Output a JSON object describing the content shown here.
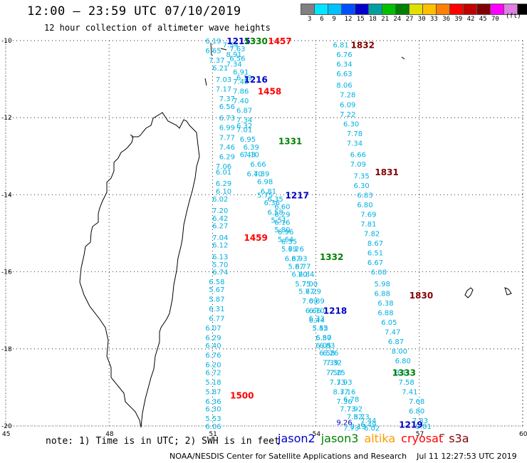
{
  "header": {
    "title": "12:00 – 23:59 UTC 07/10/2019",
    "subtitle": "12 hour collection of altimeter wave heights"
  },
  "colorbar": {
    "unit": "(ft)",
    "ticks": [
      "3",
      "6",
      "9",
      "12",
      "15",
      "18",
      "21",
      "24",
      "27",
      "30",
      "33",
      "36",
      "39",
      "42",
      "45",
      "70"
    ],
    "colors": [
      "#808080",
      "#00e5ff",
      "#00c0ff",
      "#0050ff",
      "#0000c8",
      "#00a0a0",
      "#00c000",
      "#008000",
      "#e0e000",
      "#ffc000",
      "#ff8000",
      "#ff0000",
      "#c00000",
      "#800000",
      "#ff00ff",
      "#e080e0",
      "#000000"
    ]
  },
  "axes": {
    "lat_labels": [
      "-10",
      "-12",
      "-14",
      "-16",
      "-18",
      "-20"
    ],
    "lon_labels": [
      "45",
      "48",
      "51",
      "54",
      "57",
      "60"
    ]
  },
  "chart_data": {
    "type": "scatter",
    "xlabel": "",
    "ylabel": "",
    "xlim": [
      45,
      60
    ],
    "ylim": [
      -20,
      -10
    ],
    "passes": [
      {
        "label": "1215",
        "satellite": "jason2",
        "color": "#0000c8",
        "lon": 51.7,
        "lat": -10.0
      },
      {
        "label": "1216",
        "satellite": "jason2",
        "color": "#0000c8",
        "lon": 52.2,
        "lat": -11.0
      },
      {
        "label": "1217",
        "satellite": "jason2",
        "color": "#0000c8",
        "lon": 53.4,
        "lat": -14.0
      },
      {
        "label": "1218",
        "satellite": "jason2",
        "color": "#0000c8",
        "lon": 54.5,
        "lat": -17.0
      },
      {
        "label": "1219",
        "satellite": "jason2",
        "color": "#0000c8",
        "lon": 56.7,
        "lat": -19.95
      },
      {
        "label": "1330",
        "satellite": "jason3",
        "color": "#008000",
        "lon": 52.2,
        "lat": -10.0
      },
      {
        "label": "1331",
        "satellite": "jason3",
        "color": "#008000",
        "lon": 53.2,
        "lat": -12.6
      },
      {
        "label": "1332",
        "satellite": "jason3",
        "color": "#008000",
        "lon": 54.4,
        "lat": -15.6
      },
      {
        "label": "1333",
        "satellite": "jason3",
        "color": "#008000",
        "lon": 56.5,
        "lat": -18.6
      },
      {
        "label": "1457",
        "satellite": "cryosat",
        "color": "#ff0000",
        "lon": 52.9,
        "lat": -10.0
      },
      {
        "label": "1458",
        "satellite": "cryosat",
        "color": "#ff0000",
        "lon": 52.6,
        "lat": -11.3
      },
      {
        "label": "1459",
        "satellite": "cryosat",
        "color": "#ff0000",
        "lon": 52.2,
        "lat": -15.1
      },
      {
        "label": "1500",
        "satellite": "cryosat",
        "color": "#ff0000",
        "lon": 51.8,
        "lat": -19.2
      },
      {
        "label": "1832",
        "satellite": "s3a",
        "color": "#800000",
        "lon": 55.3,
        "lat": -10.1
      },
      {
        "label": "1831",
        "satellite": "s3a",
        "color": "#800000",
        "lon": 56.0,
        "lat": -13.4
      },
      {
        "label": "1830",
        "satellite": "s3a",
        "color": "#800000",
        "lon": 57.0,
        "lat": -16.6
      }
    ],
    "tracks": [
      {
        "satellite": "cryosat",
        "color": "#00b0e0",
        "points": [
          [
            51.0,
            -10.0,
            "6.19"
          ],
          [
            51.0,
            -10.25,
            "6.65"
          ],
          [
            51.1,
            -10.5,
            "7.37"
          ],
          [
            51.2,
            -10.7,
            "6.21"
          ],
          [
            51.3,
            -11.0,
            "7.03"
          ],
          [
            51.3,
            -11.25,
            "7.17"
          ],
          [
            51.4,
            -11.5,
            "7.37"
          ],
          [
            51.4,
            -11.7,
            "6.56"
          ],
          [
            51.4,
            -12.0,
            "6.73"
          ],
          [
            51.4,
            -12.25,
            "6.99"
          ],
          [
            51.4,
            -12.5,
            "7.77"
          ],
          [
            51.4,
            -12.75,
            "7.46"
          ],
          [
            51.4,
            -13.0,
            "6.29"
          ],
          [
            51.3,
            -13.25,
            "7.06"
          ],
          [
            51.3,
            -13.4,
            "6.01"
          ],
          [
            51.3,
            -13.7,
            "6.29"
          ],
          [
            51.3,
            -13.9,
            "6.10"
          ],
          [
            51.2,
            -14.1,
            "6.02"
          ],
          [
            51.2,
            -14.4,
            "7.20"
          ],
          [
            51.2,
            -14.6,
            "6.42"
          ],
          [
            51.2,
            -14.8,
            "6.27"
          ],
          [
            51.2,
            -15.1,
            "7.04"
          ],
          [
            51.2,
            -15.3,
            "6.12"
          ],
          [
            51.2,
            -15.6,
            "6.13"
          ],
          [
            51.2,
            -15.8,
            "5.70"
          ],
          [
            51.2,
            -16.0,
            "6.74"
          ],
          [
            51.1,
            -16.25,
            "6.58"
          ],
          [
            51.1,
            -16.45,
            "5.67"
          ],
          [
            51.1,
            -16.7,
            "5.87"
          ],
          [
            51.1,
            -16.95,
            "6.31"
          ],
          [
            51.1,
            -17.2,
            "6.77"
          ],
          [
            51.0,
            -17.45,
            "6.07"
          ],
          [
            51.0,
            -17.7,
            "6.29"
          ],
          [
            51.0,
            -17.9,
            "6.40"
          ],
          [
            51.0,
            -18.15,
            "6.76"
          ],
          [
            51.0,
            -18.4,
            "6.20"
          ],
          [
            51.0,
            -18.6,
            "6.72"
          ],
          [
            51.0,
            -18.85,
            "5.18"
          ],
          [
            51.0,
            -19.1,
            "5.87"
          ],
          [
            51.0,
            -19.35,
            "6.36"
          ],
          [
            51.0,
            -19.55,
            "6.30"
          ],
          [
            51.0,
            -19.8,
            "5.53"
          ],
          [
            51.0,
            -20.0,
            "6.06"
          ]
        ]
      },
      {
        "satellite": "jason2",
        "color": "#00b0e0",
        "points": [
          [
            51.5,
            -10.1,
            "7.54"
          ],
          [
            51.6,
            -10.35,
            "8.91"
          ],
          [
            51.6,
            -10.6,
            "7.34"
          ],
          [
            51.8,
            -10.8,
            "6.91"
          ],
          [
            51.8,
            -11.05,
            "7.48"
          ],
          [
            51.8,
            -11.3,
            "7.86"
          ],
          [
            51.8,
            -11.55,
            "7.40"
          ],
          [
            51.9,
            -11.8,
            "6.87"
          ],
          [
            51.9,
            -12.05,
            "7.34"
          ],
          [
            51.9,
            -12.3,
            "7.01"
          ],
          [
            52.0,
            -12.55,
            "6.95"
          ],
          [
            52.1,
            -12.75,
            "6.39"
          ],
          [
            52.1,
            -12.95,
            "7.10"
          ],
          [
            52.3,
            -13.2,
            "6.66"
          ],
          [
            52.4,
            -13.45,
            "7.39"
          ],
          [
            52.5,
            -13.65,
            "6.98"
          ],
          [
            52.6,
            -13.9,
            "6.81"
          ],
          [
            52.8,
            -14.1,
            "6.35"
          ],
          [
            53.0,
            -14.3,
            "6.60"
          ],
          [
            53.0,
            -14.5,
            "6.29"
          ],
          [
            53.0,
            -14.7,
            "6.16"
          ],
          [
            53.1,
            -14.95,
            "6.96"
          ],
          [
            53.2,
            -15.2,
            "6.35"
          ],
          [
            53.4,
            -15.4,
            "6.26"
          ],
          [
            53.5,
            -15.65,
            "6.93"
          ],
          [
            53.6,
            -15.85,
            "6.77"
          ],
          [
            53.7,
            -16.05,
            "6.84"
          ],
          [
            53.8,
            -16.3,
            "7.00"
          ],
          [
            53.9,
            -16.5,
            "6.29"
          ],
          [
            54.0,
            -16.75,
            "6.89"
          ],
          [
            54.0,
            -17.0,
            "6.10"
          ],
          [
            54.0,
            -17.2,
            "6.33"
          ],
          [
            54.1,
            -17.45,
            "5.42"
          ],
          [
            54.2,
            -17.7,
            "6.80"
          ],
          [
            54.3,
            -17.9,
            "6.83"
          ],
          [
            54.4,
            -18.1,
            "6.26"
          ],
          [
            54.5,
            -18.35,
            "7.32"
          ],
          [
            54.6,
            -18.6,
            "7.25"
          ],
          [
            54.8,
            -18.85,
            "7.93"
          ],
          [
            54.9,
            -19.1,
            "7.16"
          ],
          [
            55.0,
            -19.3,
            "6.78"
          ],
          [
            55.1,
            -19.55,
            "7.92"
          ],
          [
            55.3,
            -19.75,
            "8.73"
          ],
          [
            55.5,
            -19.95,
            "6.49"
          ]
        ]
      },
      {
        "satellite": "jason3",
        "color": "#00b0e0",
        "points": [
          [
            51.7,
            -10.2,
            "7.63"
          ],
          [
            51.7,
            -10.45,
            "6.56"
          ],
          [
            51.9,
            -10.95,
            "6.19"
          ],
          [
            51.9,
            -12.2,
            "6.32"
          ],
          [
            52.0,
            -12.95,
            "6.43"
          ],
          [
            52.2,
            -13.45,
            "6.40"
          ],
          [
            52.5,
            -14.0,
            "5.75"
          ],
          [
            52.7,
            -14.2,
            "6.36"
          ],
          [
            52.8,
            -14.45,
            "6.58"
          ],
          [
            52.9,
            -14.65,
            "5.51"
          ],
          [
            53.0,
            -14.9,
            "5.80"
          ],
          [
            53.1,
            -15.15,
            "5.64"
          ],
          [
            53.2,
            -15.4,
            "5.79"
          ],
          [
            53.3,
            -15.65,
            "6.87"
          ],
          [
            53.4,
            -15.85,
            "5.87"
          ],
          [
            53.5,
            -16.05,
            "6.20"
          ],
          [
            53.6,
            -16.3,
            "5.75"
          ],
          [
            53.7,
            -16.5,
            "5.77"
          ],
          [
            53.8,
            -16.75,
            "7.09"
          ],
          [
            53.9,
            -17.0,
            "6.66"
          ],
          [
            54.0,
            -17.25,
            "6.44"
          ],
          [
            54.1,
            -17.45,
            "5.55"
          ],
          [
            54.2,
            -17.7,
            "6.57"
          ],
          [
            54.2,
            -17.9,
            "6.05"
          ],
          [
            54.3,
            -18.1,
            "6.58"
          ],
          [
            54.4,
            -18.35,
            "7.39"
          ],
          [
            54.5,
            -18.6,
            "7.50"
          ],
          [
            54.6,
            -18.85,
            "7.33"
          ],
          [
            54.7,
            -19.1,
            "8.37"
          ],
          [
            54.8,
            -19.35,
            "7.36"
          ],
          [
            54.9,
            -19.55,
            "7.73"
          ],
          [
            55.1,
            -19.75,
            "7.52"
          ],
          [
            55.2,
            -20.0,
            "8.13"
          ]
        ]
      },
      {
        "satellite": "s3a",
        "color": "#00b0e0",
        "points": [
          [
            54.7,
            -10.1,
            "6.81"
          ],
          [
            54.8,
            -10.35,
            "6.76"
          ],
          [
            54.8,
            -10.6,
            "6.34"
          ],
          [
            54.8,
            -10.85,
            "6.63"
          ],
          [
            54.8,
            -11.15,
            "8.06"
          ],
          [
            54.9,
            -11.4,
            "7.28"
          ],
          [
            54.9,
            -11.65,
            "6.09"
          ],
          [
            54.9,
            -11.9,
            "7.22"
          ],
          [
            55.0,
            -12.15,
            "6.30"
          ],
          [
            55.1,
            -12.4,
            "7.78"
          ],
          [
            55.1,
            -12.65,
            "7.34"
          ],
          [
            55.2,
            -12.95,
            "6.66"
          ],
          [
            55.2,
            -13.2,
            "7.09"
          ],
          [
            55.3,
            -13.5,
            "7.35"
          ],
          [
            55.3,
            -13.75,
            "6.30"
          ],
          [
            55.4,
            -14.0,
            "6.83"
          ],
          [
            55.4,
            -14.25,
            "6.80"
          ],
          [
            55.5,
            -14.5,
            "7.69"
          ],
          [
            55.5,
            -14.75,
            "7.81"
          ],
          [
            55.6,
            -15.0,
            "7.82"
          ],
          [
            55.7,
            -15.25,
            "8.67"
          ],
          [
            55.7,
            -15.5,
            "6.51"
          ],
          [
            55.7,
            -15.75,
            "6.67"
          ],
          [
            55.8,
            -16.0,
            "6.08"
          ],
          [
            55.9,
            -16.3,
            "5.98"
          ],
          [
            55.9,
            -16.55,
            "6.88"
          ],
          [
            56.0,
            -16.8,
            "6.38"
          ],
          [
            56.0,
            -17.05,
            "6.88"
          ],
          [
            56.1,
            -17.3,
            "6.05"
          ],
          [
            56.2,
            -17.55,
            "7.47"
          ],
          [
            56.3,
            -17.8,
            "6.87"
          ],
          [
            56.4,
            -18.05,
            "8.00"
          ],
          [
            56.5,
            -18.3,
            "6.80"
          ],
          [
            56.5,
            -18.6,
            "8.11"
          ],
          [
            56.6,
            -18.85,
            "7.58"
          ],
          [
            56.7,
            -19.1,
            "7.41"
          ],
          [
            56.9,
            -19.35,
            "7.68"
          ],
          [
            56.9,
            -19.6,
            "6.80"
          ],
          [
            57.0,
            -19.85,
            "7.83"
          ],
          [
            57.1,
            -20.0,
            "9.81"
          ]
        ]
      }
    ],
    "end_values": [
      {
        "lon": 54.8,
        "lat": -19.9,
        "text": "9.26",
        "color": "#0000c8"
      },
      {
        "lon": 55.0,
        "lat": -20.05,
        "text": "7.73",
        "color": "#00b0e0"
      },
      {
        "lon": 55.6,
        "lat": -20.05,
        "text": "6.02",
        "color": "#00b0e0"
      },
      {
        "lon": 55.5,
        "lat": -19.85,
        "text": "7.44",
        "color": "#00b0e0"
      }
    ]
  },
  "footer": {
    "note": "note: 1) Time is in UTC; 2) SWH is in feet",
    "legend": [
      {
        "name": "jason2",
        "color": "#0000c8"
      },
      {
        "name": "jason3",
        "color": "#008000"
      },
      {
        "name": "altika",
        "color": "#ff9900"
      },
      {
        "name": "cryosat",
        "color": "#ff0000"
      },
      {
        "name": "s3a",
        "color": "#800000"
      }
    ],
    "credit": "NOAA/NESDIS Center for Satellite Applications and Research    Jul 11 12:27:53 UTC 2019"
  }
}
